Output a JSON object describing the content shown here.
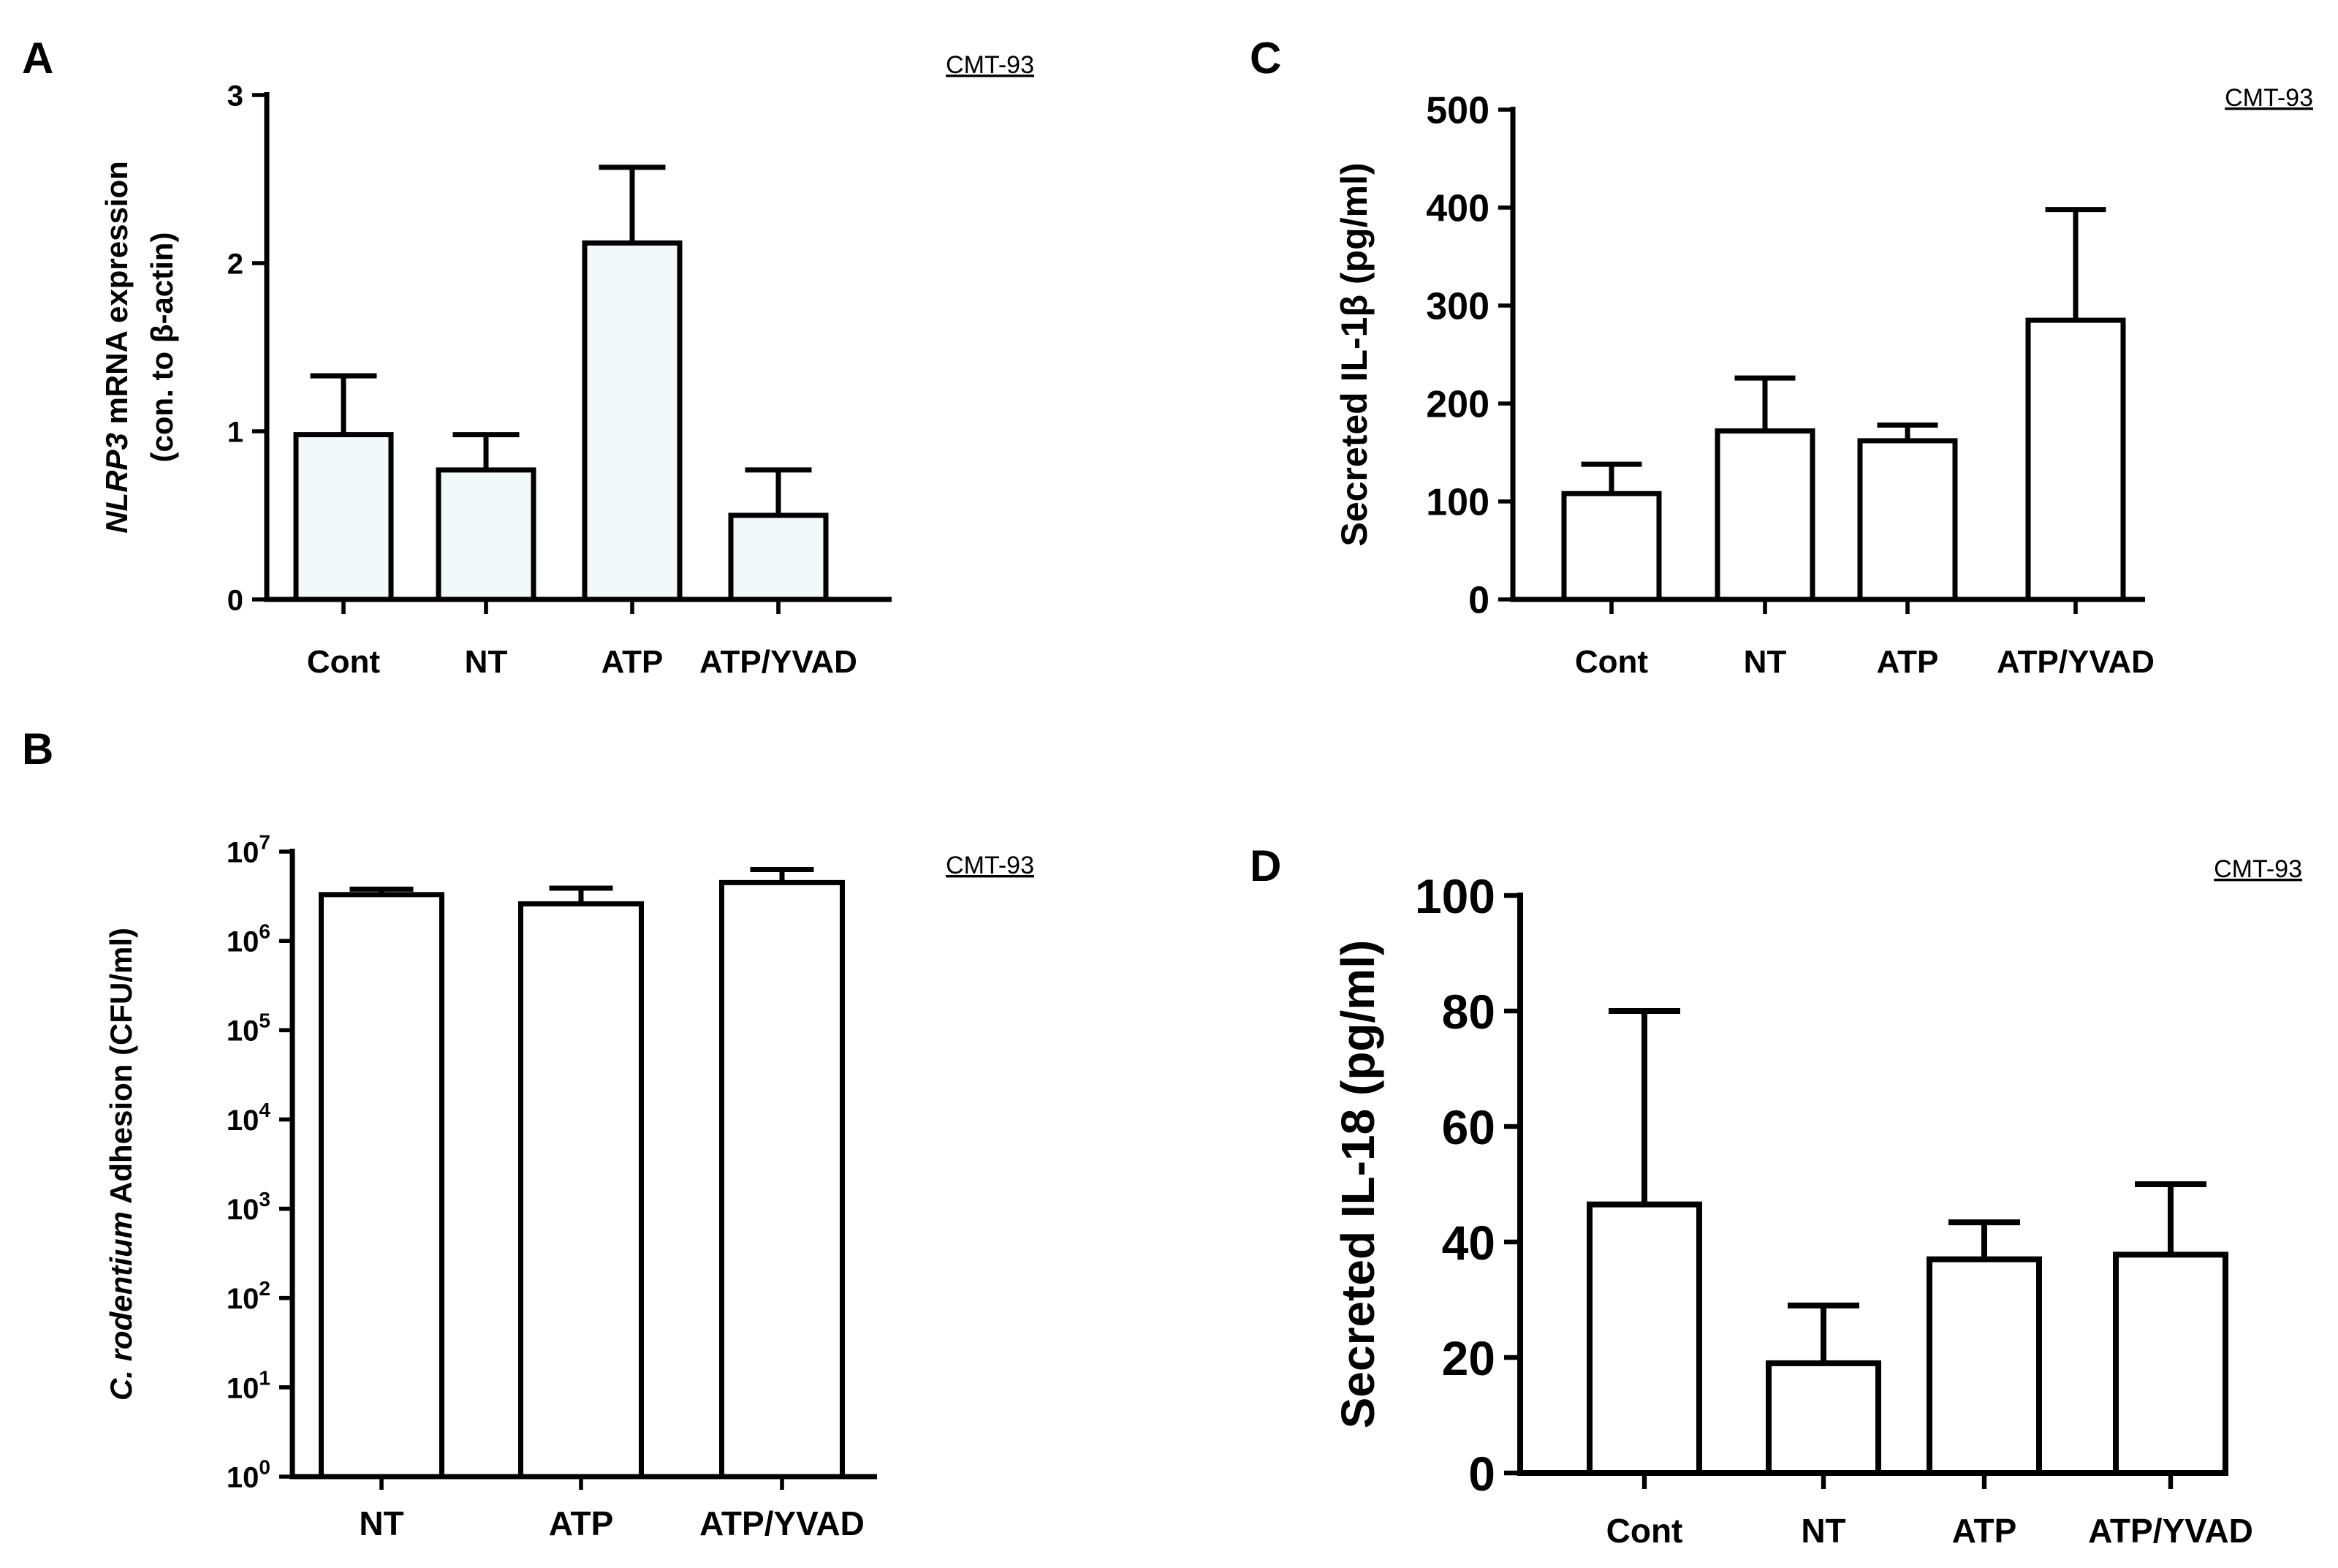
{
  "chart_data": [
    {
      "panel": "A",
      "type": "bar",
      "cell_line": "CMT-93",
      "ylabel_lines": [
        {
          "italic": "NLRP3",
          "rest": " mRNA expression"
        },
        {
          "italic": "",
          "rest": "(con. to β-actin)"
        }
      ],
      "categories": [
        "Cont",
        "NT",
        "ATP",
        "ATP/YVAD"
      ],
      "values": [
        0.98,
        0.77,
        2.12,
        0.5
      ],
      "errors": [
        0.35,
        0.21,
        0.45,
        0.27
      ],
      "ylim": [
        0,
        3
      ],
      "ticks": [
        0,
        1,
        2,
        3
      ],
      "tick_labels": [
        "0",
        "1",
        "2",
        "3"
      ],
      "scale": "linear",
      "bar_fill": "#f2f9f9"
    },
    {
      "panel": "C",
      "type": "bar",
      "cell_line": "CMT-93",
      "ylabel_lines": [
        {
          "italic": "",
          "rest": "Secreted IL-1β (pg/ml)"
        }
      ],
      "categories": [
        "Cont",
        "NT",
        "ATP",
        "ATP/YVAD"
      ],
      "values": [
        108,
        172,
        162,
        285
      ],
      "errors": [
        30,
        54,
        16,
        113
      ],
      "ylim": [
        0,
        500
      ],
      "ticks": [
        0,
        100,
        200,
        300,
        400,
        500
      ],
      "tick_labels": [
        "0",
        "100",
        "200",
        "300",
        "400",
        "500"
      ],
      "scale": "linear",
      "bar_fill": "#ffffff"
    },
    {
      "panel": "B",
      "type": "bar",
      "cell_line": "CMT-93",
      "ylabel_lines": [
        {
          "italic": "C. rodentium",
          "rest": " Adhesion (CFU/ml)"
        }
      ],
      "categories": [
        "NT",
        "ATP",
        "ATP/YVAD"
      ],
      "values": [
        3300000,
        2600000,
        4500000
      ],
      "errors": [
        500000,
        1300000,
        1800000
      ],
      "ylim": [
        1,
        10000000
      ],
      "ticks": [
        1,
        10,
        100,
        1000,
        10000,
        100000,
        1000000,
        10000000
      ],
      "tick_labels": [
        "10",
        "10",
        "10",
        "10",
        "10",
        "10",
        "10",
        "10"
      ],
      "tick_exponents": [
        "0",
        "1",
        "2",
        "3",
        "4",
        "5",
        "6",
        "7"
      ],
      "scale": "log",
      "bar_fill": "#ffffff"
    },
    {
      "panel": "D",
      "type": "bar",
      "cell_line": "CMT-93",
      "ylabel_lines": [
        {
          "italic": "",
          "rest": "Secreted IL-18 (pg/ml)"
        }
      ],
      "categories": [
        "Cont",
        "NT",
        "ATP",
        "ATP/YVAD"
      ],
      "values": [
        46.5,
        19,
        37,
        37.8
      ],
      "errors": [
        33.5,
        10,
        6.4,
        12.2
      ],
      "ylim": [
        0,
        100
      ],
      "ticks": [
        0,
        20,
        40,
        60,
        80,
        100
      ],
      "tick_labels": [
        "0",
        "20",
        "40",
        "60",
        "80",
        "100"
      ],
      "scale": "linear",
      "bar_fill": "#ffffff"
    }
  ]
}
